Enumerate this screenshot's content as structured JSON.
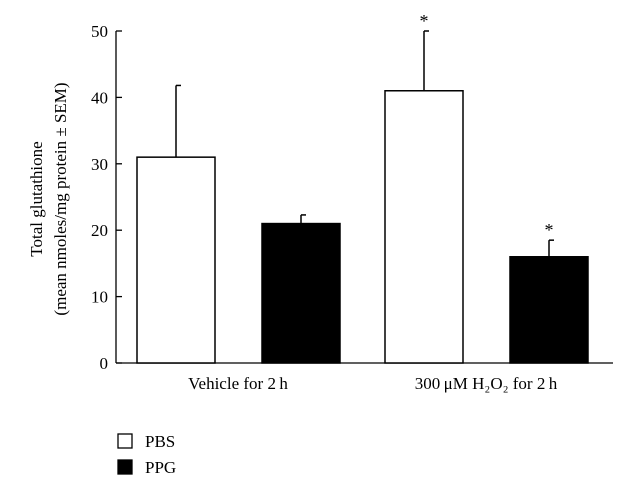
{
  "chart_data": {
    "type": "bar",
    "categories": [
      "Vehicle for 2 h",
      "300 μM H₂O₂ for 2 h"
    ],
    "series": [
      {
        "name": "PBS",
        "color": "#ffffff",
        "values": [
          31,
          41
        ],
        "errors": [
          10.8,
          9
        ],
        "significant": [
          false,
          true
        ]
      },
      {
        "name": "PPG",
        "color": "#000000",
        "values": [
          21,
          16
        ],
        "errors": [
          1.3,
          2.5
        ],
        "significant": [
          false,
          true
        ]
      }
    ],
    "ylabel_lines": [
      "Total glutathione",
      "(mean nmoles/mg protein ± SEM)"
    ],
    "ylim": [
      0,
      50
    ],
    "yticks": [
      "0",
      "10",
      "20",
      "30",
      "40",
      "50"
    ],
    "significance_marker": "*",
    "legend_position": "bottom-left",
    "grid": false
  }
}
